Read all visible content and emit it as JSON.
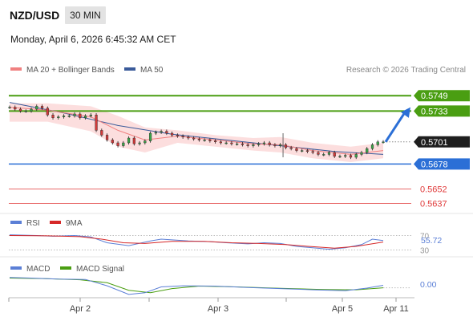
{
  "header": {
    "pair": "NZD/USD",
    "timeframe": "30 MIN",
    "datetime": "Monday, April 6, 2026 6:45:32 AM CET"
  },
  "legend": {
    "ma20": "MA 20 + Bollinger Bands",
    "ma50": "MA 50",
    "copyright": "Research © 2026 Trading Central",
    "rsi": "RSI",
    "rsi_ma": "9MA",
    "macd": "MACD",
    "macd_signal": "MACD Signal"
  },
  "colors": {
    "up_level": "#4a9e12",
    "pivot": "#2b6fd6",
    "down_level": "#e03a3a",
    "price_tag": "#1e1e1e",
    "ma20": "#f08080",
    "ma50": "#3a5a9a",
    "bollinger": "#fbd3d3",
    "rsi": "#5b7fd6",
    "rsi_ma": "#d62828",
    "macd": "#5b7fd6",
    "macd_signal": "#4a9e12"
  },
  "chart_data": {
    "type": "candlestick",
    "y_range": [
      0.563,
      0.5765
    ],
    "levels": [
      {
        "name": "resistance-2",
        "value": 0.5749,
        "label": "0.5749",
        "kind": "up"
      },
      {
        "name": "resistance-1",
        "value": 0.5733,
        "label": "0.5733",
        "kind": "up"
      },
      {
        "name": "last-price",
        "value": 0.5701,
        "label": "0.5701",
        "kind": "price"
      },
      {
        "name": "pivot",
        "value": 0.5678,
        "label": "0.5678",
        "kind": "pivot"
      },
      {
        "name": "support-1",
        "value": 0.5652,
        "label": "0.5652",
        "kind": "down"
      },
      {
        "name": "support-2",
        "value": 0.5637,
        "label": "0.5637",
        "kind": "down"
      }
    ],
    "x_ticks": [
      "Apr 2",
      "Apr 3",
      "Apr 5",
      "Apr 11"
    ],
    "price_path": [
      [
        0,
        0.5737
      ],
      [
        2,
        0.5735
      ],
      [
        4,
        0.5733
      ],
      [
        6,
        0.5733
      ],
      [
        8,
        0.5735
      ],
      [
        10,
        0.5738
      ],
      [
        12,
        0.5736
      ],
      [
        14,
        0.5729
      ],
      [
        16,
        0.5726
      ],
      [
        18,
        0.5727
      ],
      [
        20,
        0.5728
      ],
      [
        22,
        0.5728
      ],
      [
        24,
        0.573
      ],
      [
        26,
        0.5726
      ],
      [
        28,
        0.5728
      ],
      [
        30,
        0.5729
      ],
      [
        32,
        0.5713
      ],
      [
        34,
        0.5708
      ],
      [
        36,
        0.5703
      ],
      [
        38,
        0.57
      ],
      [
        40,
        0.5697
      ],
      [
        42,
        0.57
      ],
      [
        44,
        0.5705
      ],
      [
        46,
        0.5699
      ],
      [
        48,
        0.57
      ],
      [
        50,
        0.5702
      ],
      [
        52,
        0.571
      ],
      [
        54,
        0.5711
      ],
      [
        56,
        0.5712
      ],
      [
        58,
        0.571
      ],
      [
        60,
        0.5708
      ],
      [
        62,
        0.5707
      ],
      [
        64,
        0.5706
      ],
      [
        66,
        0.5705
      ],
      [
        68,
        0.5704
      ],
      [
        70,
        0.5703
      ],
      [
        72,
        0.5703
      ],
      [
        74,
        0.5702
      ],
      [
        76,
        0.5701
      ],
      [
        78,
        0.57
      ],
      [
        80,
        0.57
      ],
      [
        82,
        0.5699
      ],
      [
        84,
        0.5699
      ],
      [
        86,
        0.5698
      ],
      [
        88,
        0.5697
      ],
      [
        90,
        0.5698
      ],
      [
        92,
        0.5699
      ],
      [
        94,
        0.57
      ],
      [
        96,
        0.5698
      ],
      [
        98,
        0.5697
      ],
      [
        100,
        0.5698
      ],
      [
        102,
        0.5695
      ],
      [
        104,
        0.5694
      ],
      [
        106,
        0.5692
      ],
      [
        108,
        0.5692
      ],
      [
        110,
        0.5691
      ],
      [
        112,
        0.569
      ],
      [
        114,
        0.5688
      ],
      [
        116,
        0.5688
      ],
      [
        118,
        0.569
      ],
      [
        120,
        0.5686
      ],
      [
        122,
        0.5686
      ],
      [
        124,
        0.5687
      ],
      [
        126,
        0.5685
      ],
      [
        128,
        0.5688
      ],
      [
        130,
        0.569
      ],
      [
        132,
        0.5694
      ],
      [
        134,
        0.5698
      ],
      [
        136,
        0.5701
      ],
      [
        138,
        0.5701
      ]
    ],
    "wick_spike": {
      "x": 101,
      "high": 0.571,
      "low": 0.5685
    },
    "ma50_path": [
      [
        0,
        0.5742
      ],
      [
        20,
        0.5731
      ],
      [
        40,
        0.5718
      ],
      [
        60,
        0.5709
      ],
      [
        80,
        0.5703
      ],
      [
        100,
        0.5697
      ],
      [
        120,
        0.5691
      ],
      [
        138,
        0.5688
      ]
    ],
    "ma20_path": [
      [
        0,
        0.5737
      ],
      [
        14,
        0.5734
      ],
      [
        30,
        0.5727
      ],
      [
        40,
        0.5713
      ],
      [
        50,
        0.5703
      ],
      [
        62,
        0.5707
      ],
      [
        76,
        0.5703
      ],
      [
        90,
        0.5699
      ],
      [
        100,
        0.5698
      ],
      [
        112,
        0.5692
      ],
      [
        126,
        0.5688
      ],
      [
        138,
        0.5692
      ]
    ],
    "bollinger_upper": [
      [
        0,
        0.5741
      ],
      [
        14,
        0.5741
      ],
      [
        30,
        0.5738
      ],
      [
        40,
        0.5728
      ],
      [
        50,
        0.5716
      ],
      [
        62,
        0.5713
      ],
      [
        76,
        0.5708
      ],
      [
        90,
        0.5705
      ],
      [
        100,
        0.5706
      ],
      [
        112,
        0.57
      ],
      [
        126,
        0.5696
      ],
      [
        138,
        0.57
      ]
    ],
    "bollinger_lower": [
      [
        0,
        0.5722
      ],
      [
        14,
        0.5722
      ],
      [
        30,
        0.5712
      ],
      [
        40,
        0.5696
      ],
      [
        50,
        0.569
      ],
      [
        62,
        0.57
      ],
      [
        76,
        0.5696
      ],
      [
        90,
        0.5692
      ],
      [
        100,
        0.569
      ],
      [
        112,
        0.5684
      ],
      [
        126,
        0.568
      ],
      [
        138,
        0.5684
      ]
    ],
    "projection": {
      "from": 0.5701,
      "to": 0.5733
    },
    "rsi": {
      "levels": [
        "70",
        "30"
      ],
      "value_label": "55.72",
      "path": [
        [
          0,
          72
        ],
        [
          10,
          70
        ],
        [
          16,
          68
        ],
        [
          24,
          70
        ],
        [
          30,
          66
        ],
        [
          36,
          50
        ],
        [
          44,
          42
        ],
        [
          52,
          55
        ],
        [
          56,
          60
        ],
        [
          60,
          58
        ],
        [
          66,
          55
        ],
        [
          74,
          53
        ],
        [
          80,
          50
        ],
        [
          88,
          47
        ],
        [
          94,
          50
        ],
        [
          100,
          48
        ],
        [
          106,
          40
        ],
        [
          112,
          36
        ],
        [
          118,
          32
        ],
        [
          124,
          36
        ],
        [
          130,
          45
        ],
        [
          134,
          60
        ],
        [
          138,
          56
        ]
      ],
      "ma_path": [
        [
          0,
          70
        ],
        [
          14,
          69
        ],
        [
          26,
          67
        ],
        [
          34,
          60
        ],
        [
          42,
          50
        ],
        [
          50,
          48
        ],
        [
          60,
          54
        ],
        [
          72,
          54
        ],
        [
          82,
          50
        ],
        [
          92,
          48
        ],
        [
          102,
          45
        ],
        [
          112,
          39
        ],
        [
          120,
          35
        ],
        [
          128,
          40
        ],
        [
          138,
          52
        ]
      ]
    },
    "macd": {
      "value_label": "0.00",
      "path": [
        [
          0,
          0.62
        ],
        [
          8,
          0.58
        ],
        [
          18,
          0.52
        ],
        [
          28,
          0.5
        ],
        [
          36,
          0.12
        ],
        [
          44,
          -0.4
        ],
        [
          50,
          -0.3
        ],
        [
          56,
          0.05
        ],
        [
          64,
          0.12
        ],
        [
          76,
          0.1
        ],
        [
          88,
          0.02
        ],
        [
          100,
          -0.05
        ],
        [
          112,
          -0.12
        ],
        [
          124,
          -0.18
        ],
        [
          132,
          -0.02
        ],
        [
          138,
          0.15
        ]
      ],
      "signal_path": [
        [
          0,
          0.58
        ],
        [
          12,
          0.55
        ],
        [
          26,
          0.48
        ],
        [
          36,
          0.3
        ],
        [
          44,
          -0.15
        ],
        [
          52,
          -0.3
        ],
        [
          60,
          -0.05
        ],
        [
          70,
          0.1
        ],
        [
          84,
          0.05
        ],
        [
          100,
          -0.03
        ],
        [
          116,
          -0.1
        ],
        [
          128,
          -0.12
        ],
        [
          138,
          0.0
        ]
      ]
    }
  }
}
